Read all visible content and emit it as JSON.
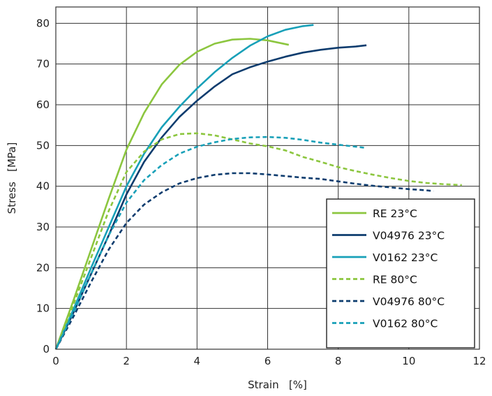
{
  "chart_data": {
    "type": "line",
    "xlabel": "Strain   [%]",
    "ylabel": "Stress   [MPa]",
    "xlim": [
      0,
      12
    ],
    "ylim": [
      0,
      84
    ],
    "xticks": [
      "0",
      "2",
      "4",
      "6",
      "8",
      "10",
      "12"
    ],
    "yticks": [
      "0",
      "10",
      "20",
      "30",
      "40",
      "50",
      "60",
      "70",
      "80"
    ],
    "grid": true,
    "legend_position": "bottom-right",
    "series": [
      {
        "name": "RE 23°C",
        "color": "#8cc63f",
        "dash": "solid",
        "points": [
          [
            0,
            0
          ],
          [
            0.5,
            12
          ],
          [
            1,
            24.5
          ],
          [
            1.5,
            37
          ],
          [
            2,
            49
          ],
          [
            2.5,
            58
          ],
          [
            3,
            65
          ],
          [
            3.5,
            69.8
          ],
          [
            4,
            73
          ],
          [
            4.5,
            75
          ],
          [
            5,
            76
          ],
          [
            5.5,
            76.2
          ],
          [
            6,
            75.8
          ],
          [
            6.6,
            74.7
          ]
        ]
      },
      {
        "name": "V04976 23°C",
        "color": "#0d3c6e",
        "dash": "solid",
        "points": [
          [
            0,
            0
          ],
          [
            0.5,
            9
          ],
          [
            1,
            18.5
          ],
          [
            1.5,
            28
          ],
          [
            2,
            38
          ],
          [
            2.5,
            46
          ],
          [
            3,
            52
          ],
          [
            3.5,
            57
          ],
          [
            4,
            61
          ],
          [
            4.5,
            64.5
          ],
          [
            5,
            67.5
          ],
          [
            5.5,
            69.2
          ],
          [
            6,
            70.6
          ],
          [
            6.5,
            71.8
          ],
          [
            7,
            72.8
          ],
          [
            7.5,
            73.5
          ],
          [
            8,
            74
          ],
          [
            8.5,
            74.3
          ],
          [
            8.8,
            74.6
          ]
        ]
      },
      {
        "name": "V0162 23°C",
        "color": "#18a0b8",
        "dash": "solid",
        "points": [
          [
            0,
            0
          ],
          [
            0.5,
            9.8
          ],
          [
            1,
            20
          ],
          [
            1.5,
            30
          ],
          [
            2,
            40
          ],
          [
            2.5,
            48
          ],
          [
            3,
            54.5
          ],
          [
            3.5,
            59.5
          ],
          [
            4,
            64
          ],
          [
            4.5,
            68
          ],
          [
            5,
            71.5
          ],
          [
            5.5,
            74.5
          ],
          [
            6,
            76.8
          ],
          [
            6.5,
            78.4
          ],
          [
            7,
            79.3
          ],
          [
            7.3,
            79.6
          ]
        ]
      },
      {
        "name": "RE 80°C",
        "color": "#8cc63f",
        "dash": "dashed",
        "points": [
          [
            0,
            0
          ],
          [
            0.5,
            11
          ],
          [
            1,
            22.5
          ],
          [
            1.5,
            34
          ],
          [
            2,
            43.5
          ],
          [
            2.5,
            48.5
          ],
          [
            3,
            51.5
          ],
          [
            3.5,
            52.8
          ],
          [
            4,
            53
          ],
          [
            4.5,
            52.5
          ],
          [
            5,
            51.5
          ],
          [
            5.5,
            50.5
          ],
          [
            6,
            49.8
          ],
          [
            6.5,
            48.8
          ],
          [
            7,
            47.2
          ],
          [
            7.5,
            46
          ],
          [
            8,
            44.7
          ],
          [
            8.5,
            43.7
          ],
          [
            9,
            42.8
          ],
          [
            9.5,
            42
          ],
          [
            10,
            41.3
          ],
          [
            10.5,
            40.8
          ],
          [
            11,
            40.5
          ],
          [
            11.5,
            40.3
          ]
        ]
      },
      {
        "name": "V04976 80°C",
        "color": "#0d3c6e",
        "dash": "dashed",
        "points": [
          [
            0,
            0
          ],
          [
            0.5,
            8
          ],
          [
            1,
            16.5
          ],
          [
            1.5,
            24.5
          ],
          [
            2,
            31
          ],
          [
            2.5,
            35.5
          ],
          [
            3,
            38.5
          ],
          [
            3.5,
            40.7
          ],
          [
            4,
            42
          ],
          [
            4.5,
            42.8
          ],
          [
            5,
            43.2
          ],
          [
            5.5,
            43.2
          ],
          [
            6,
            42.9
          ],
          [
            6.5,
            42.5
          ],
          [
            7,
            42.1
          ],
          [
            7.5,
            41.8
          ],
          [
            8,
            41.2
          ],
          [
            8.5,
            40.6
          ],
          [
            9,
            40.1
          ],
          [
            9.5,
            39.7
          ],
          [
            10,
            39.3
          ],
          [
            10.5,
            39
          ],
          [
            10.7,
            38.8
          ]
        ]
      },
      {
        "name": "V0162 80°C",
        "color": "#18a0b8",
        "dash": "dashed",
        "points": [
          [
            0,
            0
          ],
          [
            0.5,
            9
          ],
          [
            1,
            18.5
          ],
          [
            1.5,
            28
          ],
          [
            2,
            36
          ],
          [
            2.5,
            41.5
          ],
          [
            3,
            45.2
          ],
          [
            3.5,
            48
          ],
          [
            4,
            49.7
          ],
          [
            4.5,
            50.8
          ],
          [
            5,
            51.6
          ],
          [
            5.5,
            52
          ],
          [
            6,
            52.1
          ],
          [
            6.5,
            51.9
          ],
          [
            7,
            51.4
          ],
          [
            7.5,
            50.7
          ],
          [
            8,
            50.2
          ],
          [
            8.5,
            49.7
          ],
          [
            8.8,
            49.4
          ]
        ]
      }
    ]
  }
}
